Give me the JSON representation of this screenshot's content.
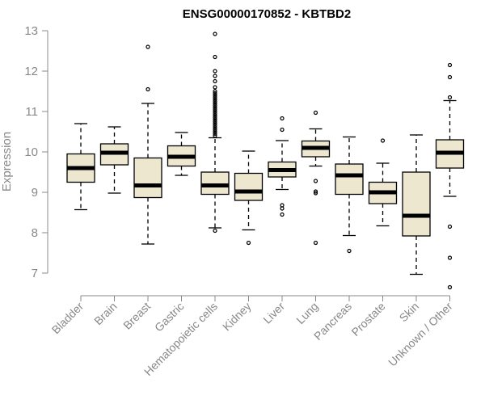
{
  "chart_data": {
    "type": "boxplot",
    "title": "ENSG00000170852 - KBTBD2",
    "xlabel": "",
    "ylabel": "Expression",
    "ylim": [
      6.5,
      13.2
    ],
    "yticks": [
      7,
      8,
      9,
      10,
      11,
      12,
      13
    ],
    "grid": false,
    "colors": {
      "box_fill": "#ede7d0",
      "stroke": "#000000",
      "axis": "#888888"
    },
    "categories": [
      "Bladder",
      "Brain",
      "Breast",
      "Gastric",
      "Hematopoietic cells",
      "Kidney",
      "Liver",
      "Lung",
      "Pancreas",
      "Prostate",
      "Skin",
      "Unknown / Other"
    ],
    "boxes": [
      {
        "name": "Bladder",
        "whisker_low": 8.57,
        "q1": 9.25,
        "median": 9.6,
        "q3": 9.95,
        "whisker_high": 10.7,
        "outliers": []
      },
      {
        "name": "Brain",
        "whisker_low": 8.98,
        "q1": 9.68,
        "median": 9.98,
        "q3": 10.2,
        "whisker_high": 10.62,
        "outliers": []
      },
      {
        "name": "Breast",
        "whisker_low": 7.72,
        "q1": 8.87,
        "median": 9.17,
        "q3": 9.85,
        "whisker_high": 11.2,
        "outliers": [
          11.55,
          12.6
        ]
      },
      {
        "name": "Gastric",
        "whisker_low": 9.42,
        "q1": 9.65,
        "median": 9.88,
        "q3": 10.15,
        "whisker_high": 10.48,
        "outliers": []
      },
      {
        "name": "Hematopoietic cells",
        "whisker_low": 8.12,
        "q1": 8.95,
        "median": 9.17,
        "q3": 9.5,
        "whisker_high": 10.35,
        "outliers": [
          8.05,
          10.4,
          10.45,
          10.5,
          10.55,
          10.6,
          10.65,
          10.7,
          10.75,
          10.8,
          10.85,
          10.9,
          10.95,
          11.0,
          11.05,
          11.1,
          11.15,
          11.2,
          11.25,
          11.3,
          11.35,
          11.4,
          11.45,
          11.5,
          11.6,
          11.75,
          11.88,
          12.0,
          12.35,
          12.92
        ]
      },
      {
        "name": "Kidney",
        "whisker_low": 8.07,
        "q1": 8.8,
        "median": 9.02,
        "q3": 9.47,
        "whisker_high": 10.02,
        "outliers": [
          7.75
        ]
      },
      {
        "name": "Liver",
        "whisker_low": 9.07,
        "q1": 9.38,
        "median": 9.55,
        "q3": 9.75,
        "whisker_high": 10.28,
        "outliers": [
          8.45,
          8.6,
          8.68,
          10.55,
          10.83
        ]
      },
      {
        "name": "Lung",
        "whisker_low": 9.65,
        "q1": 9.88,
        "median": 10.1,
        "q3": 10.27,
        "whisker_high": 10.57,
        "outliers": [
          7.75,
          8.98,
          9.02,
          9.28,
          10.97
        ]
      },
      {
        "name": "Pancreas",
        "whisker_low": 7.93,
        "q1": 8.95,
        "median": 9.42,
        "q3": 9.7,
        "whisker_high": 10.37,
        "outliers": [
          7.55
        ]
      },
      {
        "name": "Prostate",
        "whisker_low": 8.17,
        "q1": 8.72,
        "median": 9.0,
        "q3": 9.25,
        "whisker_high": 9.72,
        "outliers": [
          10.28
        ]
      },
      {
        "name": "Skin",
        "whisker_low": 6.97,
        "q1": 7.92,
        "median": 8.42,
        "q3": 9.5,
        "whisker_high": 10.42,
        "outliers": []
      },
      {
        "name": "Unknown / Other",
        "whisker_low": 8.9,
        "q1": 9.6,
        "median": 9.98,
        "q3": 10.3,
        "whisker_high": 11.27,
        "outliers": [
          6.65,
          7.38,
          8.15,
          11.35,
          11.85,
          12.15
        ]
      }
    ]
  }
}
